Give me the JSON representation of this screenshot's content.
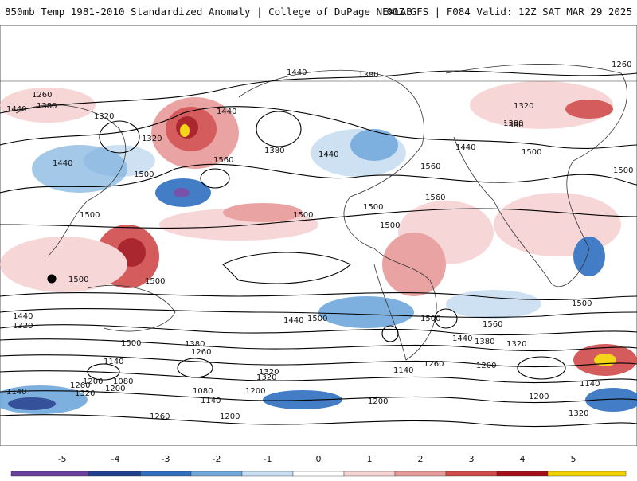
{
  "header": {
    "left_title": "850mb Temp 1981-2010 Standardized Anomaly | College of DuPage NEXLAB",
    "right_title": "00Z GFS | F084 Valid: 12Z SAT MAR 29 2025"
  },
  "colorbar": {
    "ticks": [
      "-5",
      "-4",
      "-3",
      "-2",
      "-1",
      "0",
      "1",
      "2",
      "3",
      "4",
      "5"
    ],
    "colors": [
      "#6a3fa0",
      "#1f3f8f",
      "#2f6fc0",
      "#6fa8dc",
      "#c9def2",
      "#ffffff",
      "#f6d2d2",
      "#e89a9a",
      "#d14b4b",
      "#a3101a",
      "#f2d200"
    ]
  },
  "map": {
    "contour_labels": [
      "1260",
      "1380",
      "1440",
      "1320",
      "1320",
      "1440",
      "1500",
      "1440",
      "1380",
      "1440",
      "1560",
      "1380",
      "1440",
      "1380",
      "1320",
      "1260",
      "1380",
      "1500",
      "1440",
      "1560",
      "1500",
      "1500",
      "1560",
      "1500",
      "1500",
      "1500",
      "1500",
      "1500",
      "1440",
      "1320",
      "1500",
      "1440",
      "1500",
      "1500",
      "1560",
      "1500",
      "1440",
      "1380",
      "1320",
      "1380",
      "1260",
      "1320",
      "1140",
      "1200",
      "1080",
      "1200",
      "1140",
      "1260",
      "1200",
      "1320",
      "1200",
      "1140",
      "1080",
      "1260",
      "1140",
      "1200",
      "1320",
      "1260",
      "1140",
      "1200",
      "1320",
      "1200"
    ]
  }
}
